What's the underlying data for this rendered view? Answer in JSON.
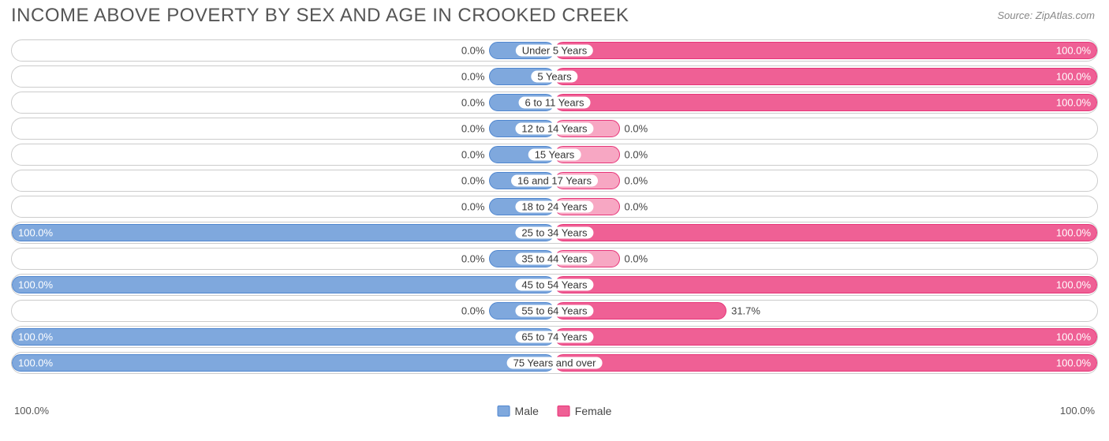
{
  "title": "INCOME ABOVE POVERTY BY SEX AND AGE IN CROOKED CREEK",
  "source": "Source: ZipAtlas.com",
  "colors": {
    "male_fill": "#7fa8dd",
    "male_border": "#4f86cf",
    "female_fill": "#ef6095",
    "female_border": "#e73478",
    "female_stub_fill": "#f7a7c3",
    "row_border": "#cccccc",
    "text": "#444444",
    "title_text": "#555555",
    "background": "#ffffff"
  },
  "stub_pct": 12,
  "chart": {
    "categories": [
      {
        "label": "Under 5 Years",
        "male": 0.0,
        "female": 100.0
      },
      {
        "label": "5 Years",
        "male": 0.0,
        "female": 100.0
      },
      {
        "label": "6 to 11 Years",
        "male": 0.0,
        "female": 100.0
      },
      {
        "label": "12 to 14 Years",
        "male": 0.0,
        "female": 0.0
      },
      {
        "label": "15 Years",
        "male": 0.0,
        "female": 0.0
      },
      {
        "label": "16 and 17 Years",
        "male": 0.0,
        "female": 0.0
      },
      {
        "label": "18 to 24 Years",
        "male": 0.0,
        "female": 0.0
      },
      {
        "label": "25 to 34 Years",
        "male": 100.0,
        "female": 100.0
      },
      {
        "label": "35 to 44 Years",
        "male": 0.0,
        "female": 0.0
      },
      {
        "label": "45 to 54 Years",
        "male": 100.0,
        "female": 100.0
      },
      {
        "label": "55 to 64 Years",
        "male": 0.0,
        "female": 31.7
      },
      {
        "label": "65 to 74 Years",
        "male": 100.0,
        "female": 100.0
      },
      {
        "label": "75 Years and over",
        "male": 100.0,
        "female": 100.0
      }
    ],
    "axis_left": "100.0%",
    "axis_right": "100.0%",
    "legend_male": "Male",
    "legend_female": "Female"
  }
}
